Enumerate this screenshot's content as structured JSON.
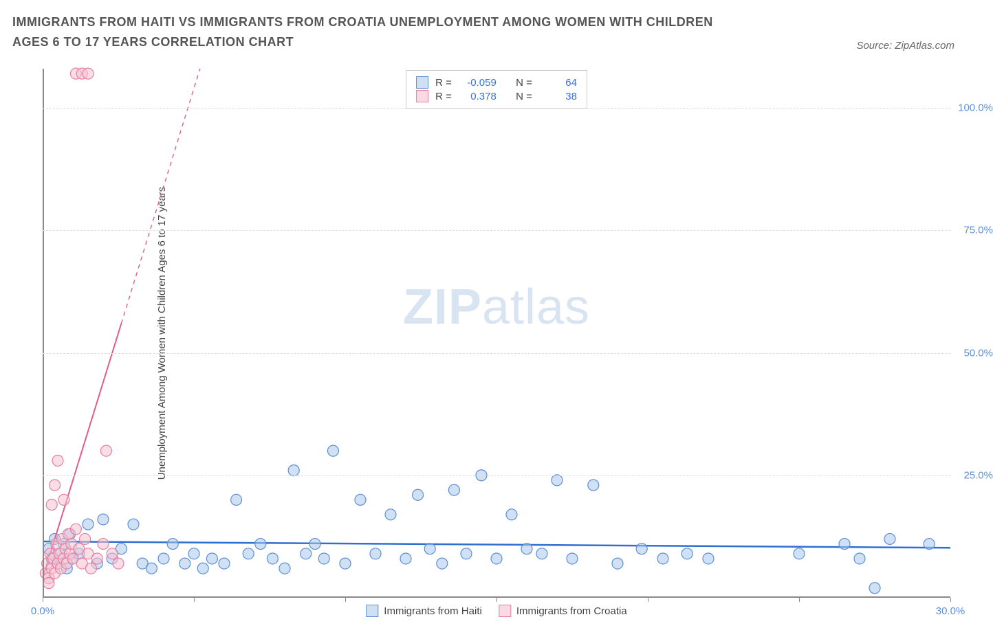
{
  "title": "IMMIGRANTS FROM HAITI VS IMMIGRANTS FROM CROATIA UNEMPLOYMENT AMONG WOMEN WITH CHILDREN AGES 6 TO 17 YEARS CORRELATION CHART",
  "source": "Source: ZipAtlas.com",
  "y_axis_label": "Unemployment Among Women with Children Ages 6 to 17 years",
  "watermark_a": "ZIP",
  "watermark_b": "atlas",
  "chart": {
    "type": "scatter",
    "xlim": [
      0,
      30
    ],
    "ylim": [
      0,
      108
    ],
    "x_ticks": [
      0,
      5,
      10,
      15,
      20,
      25,
      30
    ],
    "x_tick_labels": {
      "0": "0.0%",
      "30": "30.0%"
    },
    "y_ticks": [
      25,
      50,
      75,
      100
    ],
    "y_tick_labels": {
      "25": "25.0%",
      "50": "50.0%",
      "75": "75.0%",
      "100": "100.0%"
    },
    "grid_color": "#dddddd",
    "axis_color": "#888888",
    "background_color": "#ffffff",
    "marker_radius": 8,
    "marker_opacity": 0.55,
    "series": [
      {
        "name": "Immigrants from Haiti",
        "color_fill": "#a9c7ec",
        "color_stroke": "#5b8fd6",
        "swatch_fill": "#cfe0f5",
        "trend": {
          "x1": 0,
          "y1": 11.5,
          "x2": 30,
          "y2": 10.2,
          "color": "#2f6fd0",
          "width": 2.5,
          "dash": false
        },
        "r_label": "R =",
        "r_value": "-0.059",
        "n_label": "N =",
        "n_value": "64",
        "points": [
          [
            0.2,
            10
          ],
          [
            0.3,
            8
          ],
          [
            0.4,
            12
          ],
          [
            0.5,
            7
          ],
          [
            0.6,
            9
          ],
          [
            0.7,
            11
          ],
          [
            0.8,
            6
          ],
          [
            0.9,
            13
          ],
          [
            1.0,
            8
          ],
          [
            1.2,
            9
          ],
          [
            1.5,
            15
          ],
          [
            1.8,
            7
          ],
          [
            2.0,
            16
          ],
          [
            2.3,
            8
          ],
          [
            2.6,
            10
          ],
          [
            3.0,
            15
          ],
          [
            3.3,
            7
          ],
          [
            3.6,
            6
          ],
          [
            4.0,
            8
          ],
          [
            4.3,
            11
          ],
          [
            4.7,
            7
          ],
          [
            5.0,
            9
          ],
          [
            5.3,
            6
          ],
          [
            5.6,
            8
          ],
          [
            6.0,
            7
          ],
          [
            6.4,
            20
          ],
          [
            6.8,
            9
          ],
          [
            7.2,
            11
          ],
          [
            7.6,
            8
          ],
          [
            8.0,
            6
          ],
          [
            8.3,
            26
          ],
          [
            8.7,
            9
          ],
          [
            9.0,
            11
          ],
          [
            9.3,
            8
          ],
          [
            9.6,
            30
          ],
          [
            10.0,
            7
          ],
          [
            10.5,
            20
          ],
          [
            11.0,
            9
          ],
          [
            11.5,
            17
          ],
          [
            12.0,
            8
          ],
          [
            12.4,
            21
          ],
          [
            12.8,
            10
          ],
          [
            13.2,
            7
          ],
          [
            13.6,
            22
          ],
          [
            14.0,
            9
          ],
          [
            14.5,
            25
          ],
          [
            15.0,
            8
          ],
          [
            15.5,
            17
          ],
          [
            16.0,
            10
          ],
          [
            16.5,
            9
          ],
          [
            17.0,
            24
          ],
          [
            17.5,
            8
          ],
          [
            18.2,
            23
          ],
          [
            19.0,
            7
          ],
          [
            19.8,
            10
          ],
          [
            20.5,
            8
          ],
          [
            21.3,
            9
          ],
          [
            22.0,
            8
          ],
          [
            25.0,
            9
          ],
          [
            26.5,
            11
          ],
          [
            27.0,
            8
          ],
          [
            27.5,
            2
          ],
          [
            28.0,
            12
          ],
          [
            29.3,
            11
          ]
        ]
      },
      {
        "name": "Immigrants from Croatia",
        "color_fill": "#f4c2d0",
        "color_stroke": "#e87fa3",
        "swatch_fill": "#f9d9e3",
        "trend": {
          "x1": 0,
          "y1": 4,
          "x2": 5.2,
          "y2": 108,
          "color": "#e05c8a",
          "width": 2,
          "dash_after_x": 2.6
        },
        "r_label": "R =",
        "r_value": "0.378",
        "n_label": "N =",
        "n_value": "38",
        "points": [
          [
            0.1,
            5
          ],
          [
            0.15,
            7
          ],
          [
            0.2,
            4
          ],
          [
            0.25,
            9
          ],
          [
            0.3,
            6
          ],
          [
            0.35,
            8
          ],
          [
            0.4,
            5
          ],
          [
            0.45,
            11
          ],
          [
            0.5,
            7
          ],
          [
            0.55,
            9
          ],
          [
            0.6,
            6
          ],
          [
            0.65,
            12
          ],
          [
            0.7,
            8
          ],
          [
            0.75,
            10
          ],
          [
            0.8,
            7
          ],
          [
            0.85,
            13
          ],
          [
            0.9,
            9
          ],
          [
            0.95,
            11
          ],
          [
            1.0,
            8
          ],
          [
            1.1,
            14
          ],
          [
            1.2,
            10
          ],
          [
            1.3,
            7
          ],
          [
            1.4,
            12
          ],
          [
            1.5,
            9
          ],
          [
            1.6,
            6
          ],
          [
            0.3,
            19
          ],
          [
            0.4,
            23
          ],
          [
            0.5,
            28
          ],
          [
            0.7,
            20
          ],
          [
            1.8,
            8
          ],
          [
            2.0,
            11
          ],
          [
            2.1,
            30
          ],
          [
            2.3,
            9
          ],
          [
            2.5,
            7
          ],
          [
            1.1,
            107
          ],
          [
            1.3,
            107
          ],
          [
            1.5,
            107
          ],
          [
            0.2,
            3
          ]
        ]
      }
    ]
  },
  "legend_bottom": [
    {
      "label": "Immigrants from Haiti",
      "fill": "#cfe0f5",
      "stroke": "#5b8fd6"
    },
    {
      "label": "Immigrants from Croatia",
      "fill": "#f9d9e3",
      "stroke": "#e87fa3"
    }
  ]
}
